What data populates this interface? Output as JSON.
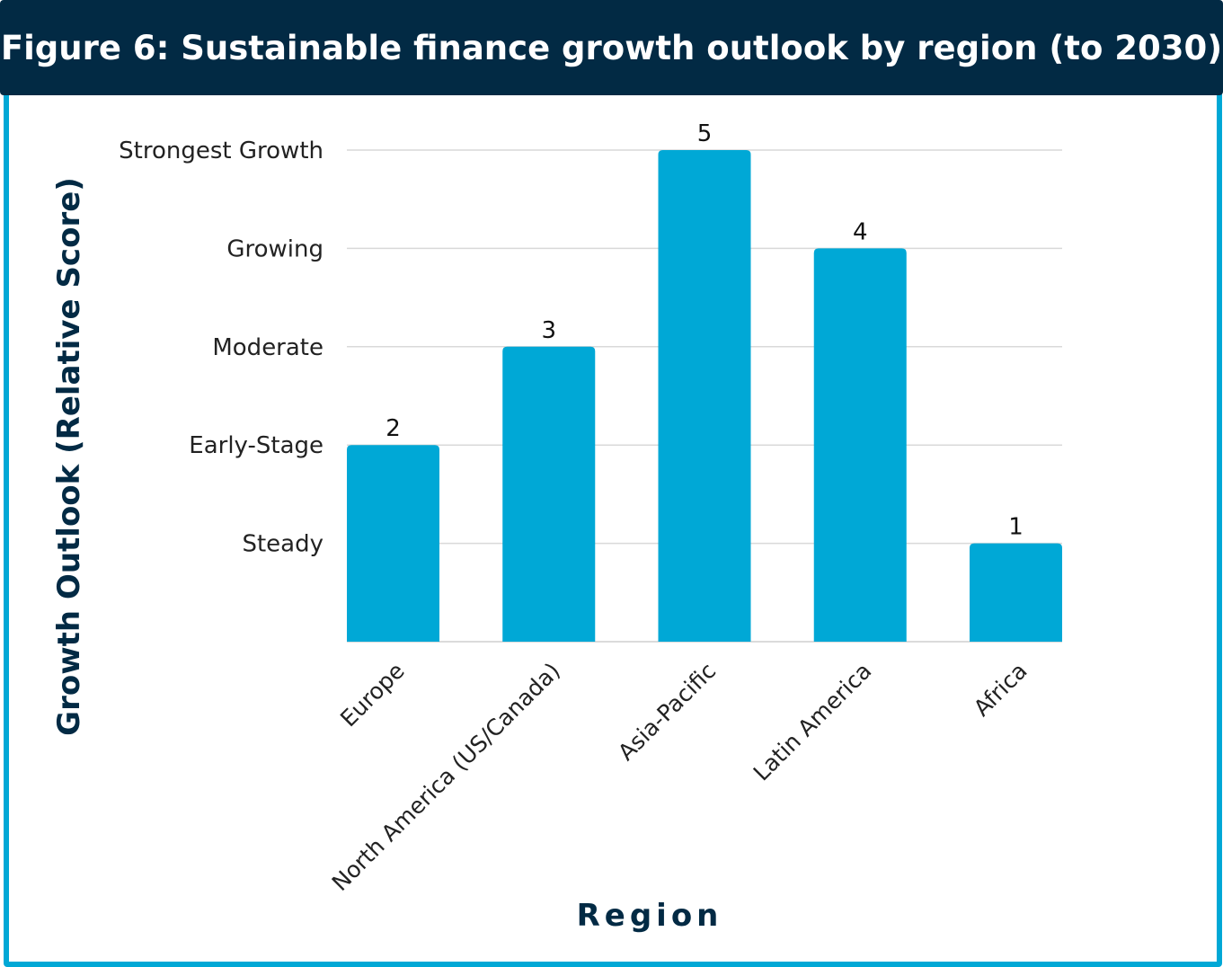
{
  "title": "Figure 6: Sustainable finance growth outlook by region (to 2030)",
  "colors": {
    "title_bg": "#022a44",
    "border": "#00a8d6",
    "bar": "#00a8d6",
    "axis_title": "#022a44"
  },
  "chart_data": {
    "type": "bar",
    "categories": [
      "Europe",
      "North America (US/Canada)",
      "Asia-Pacific",
      "Latin America",
      "Africa"
    ],
    "values": [
      2,
      3,
      5,
      4,
      1
    ],
    "data_labels": [
      "2",
      "3",
      "5",
      "4",
      "1"
    ],
    "xlabel": "Region",
    "ylabel": "Growth Outlook (Relative Score)",
    "ylim": [
      0,
      5
    ],
    "y_tick_values": [
      1,
      2,
      3,
      4,
      5
    ],
    "y_tick_labels": [
      "Steady",
      "Early-Stage",
      "Moderate",
      "Growing",
      "Strongest Growth"
    ],
    "grid": true,
    "legend": "none"
  }
}
